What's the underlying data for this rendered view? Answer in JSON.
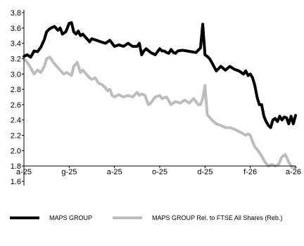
{
  "colors": {
    "background": "#ffffff",
    "axis": "#000000",
    "series_primary": "#000000",
    "series_secondary": "#bdbdbd"
  },
  "chart_data": {
    "type": "line",
    "title": "",
    "xlabel": "",
    "ylabel": "",
    "ylim": [
      1.6,
      3.8
    ],
    "y_ticks": [
      1.6,
      1.8,
      2.0,
      2.2,
      2.4,
      2.6,
      2.8,
      3.0,
      3.2,
      3.4,
      3.6,
      3.8
    ],
    "y_tick_labels": [
      "1.6",
      "1.8",
      "2.0",
      "2.2",
      "2.4",
      "2.6",
      "2.8",
      "3.0",
      "3.2",
      "3.4",
      "3.6",
      "3.8"
    ],
    "x_ticks": [
      0,
      2,
      4,
      6,
      8,
      10,
      12
    ],
    "x_tick_labels": [
      "a-25",
      "g-25",
      "a-25",
      "o-25",
      "d-25",
      "f-26",
      "a-26"
    ],
    "xlim": [
      0,
      12
    ],
    "grid": false,
    "legend": "bottom",
    "series": [
      {
        "name": "MAPS GROUP",
        "color": "#000000",
        "x": [
          0,
          0.15,
          0.3,
          0.45,
          0.6,
          0.75,
          0.9,
          1.0,
          1.1,
          1.2,
          1.35,
          1.5,
          1.6,
          1.7,
          1.85,
          2.0,
          2.1,
          2.2,
          2.3,
          2.4,
          2.5,
          2.6,
          2.75,
          2.9,
          3.0,
          3.2,
          3.4,
          3.6,
          3.8,
          4.0,
          4.2,
          4.4,
          4.6,
          4.8,
          5.0,
          5.1,
          5.2,
          5.3,
          5.4,
          5.6,
          5.8,
          6.0,
          6.1,
          6.2,
          6.3,
          6.4,
          6.5,
          6.6,
          6.7,
          6.8,
          7.0,
          7.2,
          7.4,
          7.6,
          7.8,
          7.9,
          8.0,
          8.1,
          8.2,
          8.3,
          8.5,
          8.7,
          8.9,
          9.1,
          9.3,
          9.5,
          9.7,
          9.8,
          9.9,
          10.0,
          10.1,
          10.2,
          10.3,
          10.4,
          10.5,
          10.6,
          10.7,
          10.8,
          10.9,
          11.0,
          11.1,
          11.2,
          11.3,
          11.4,
          11.5,
          11.6,
          11.7,
          11.8,
          11.9,
          12.0
        ],
        "values": [
          3.23,
          3.25,
          3.22,
          3.3,
          3.29,
          3.35,
          3.45,
          3.55,
          3.58,
          3.6,
          3.62,
          3.57,
          3.6,
          3.52,
          3.55,
          3.66,
          3.67,
          3.55,
          3.52,
          3.56,
          3.5,
          3.52,
          3.47,
          3.42,
          3.46,
          3.44,
          3.42,
          3.4,
          3.44,
          3.36,
          3.38,
          3.36,
          3.4,
          3.36,
          3.36,
          3.4,
          3.25,
          3.3,
          3.33,
          3.28,
          3.25,
          3.33,
          3.3,
          3.3,
          3.28,
          3.27,
          3.32,
          3.28,
          3.27,
          3.3,
          3.31,
          3.3,
          3.29,
          3.28,
          3.34,
          3.65,
          3.25,
          3.23,
          3.2,
          3.15,
          3.04,
          3.1,
          3.05,
          3.1,
          3.06,
          3.04,
          3.0,
          3.04,
          2.98,
          3.0,
          2.95,
          2.85,
          2.7,
          2.6,
          2.6,
          2.45,
          2.38,
          2.33,
          2.3,
          2.4,
          2.42,
          2.38,
          2.45,
          2.4,
          2.44,
          2.43,
          2.35,
          2.45,
          2.35,
          2.46
        ]
      },
      {
        "name": "MAPS GROUP Rel. to FTSE All Shares (Reb.)",
        "color": "#bdbdbd",
        "x": [
          0,
          0.15,
          0.3,
          0.45,
          0.6,
          0.75,
          0.9,
          1.0,
          1.15,
          1.3,
          1.45,
          1.6,
          1.75,
          1.9,
          2.0,
          2.1,
          2.2,
          2.35,
          2.5,
          2.6,
          2.75,
          2.9,
          3.0,
          3.15,
          3.3,
          3.45,
          3.6,
          3.7,
          3.8,
          3.9,
          4.0,
          4.2,
          4.4,
          4.6,
          4.8,
          5.0,
          5.1,
          5.2,
          5.35,
          5.5,
          5.6,
          5.8,
          6.0,
          6.1,
          6.3,
          6.5,
          6.7,
          6.9,
          7.1,
          7.3,
          7.5,
          7.7,
          7.8,
          7.9,
          8.0,
          8.1,
          8.3,
          8.5,
          8.7,
          8.9,
          9.1,
          9.3,
          9.5,
          9.7,
          9.8,
          9.9,
          10.0,
          10.1,
          10.2,
          10.35,
          10.5,
          10.65,
          10.8,
          10.95,
          11.1,
          11.25,
          11.4,
          11.55,
          11.7,
          11.85,
          12.0
        ],
        "values": [
          3.2,
          3.15,
          3.08,
          3.0,
          3.05,
          3.02,
          3.1,
          3.2,
          3.22,
          3.15,
          3.1,
          3.05,
          3.0,
          3.02,
          3.0,
          2.98,
          3.1,
          3.15,
          3.02,
          3.05,
          3.0,
          2.95,
          2.93,
          2.95,
          2.88,
          2.86,
          2.82,
          2.78,
          2.8,
          2.72,
          2.7,
          2.73,
          2.7,
          2.72,
          2.7,
          2.76,
          2.72,
          2.74,
          2.72,
          2.6,
          2.62,
          2.7,
          2.72,
          2.68,
          2.7,
          2.6,
          2.64,
          2.62,
          2.66,
          2.62,
          2.68,
          2.6,
          2.6,
          2.68,
          2.85,
          2.47,
          2.4,
          2.35,
          2.33,
          2.3,
          2.3,
          2.28,
          2.25,
          2.22,
          2.2,
          2.22,
          2.2,
          2.12,
          2.05,
          2.0,
          1.93,
          1.85,
          1.8,
          1.82,
          1.8,
          1.82,
          1.92,
          1.95,
          1.85,
          1.78,
          1.78
        ]
      }
    ]
  }
}
